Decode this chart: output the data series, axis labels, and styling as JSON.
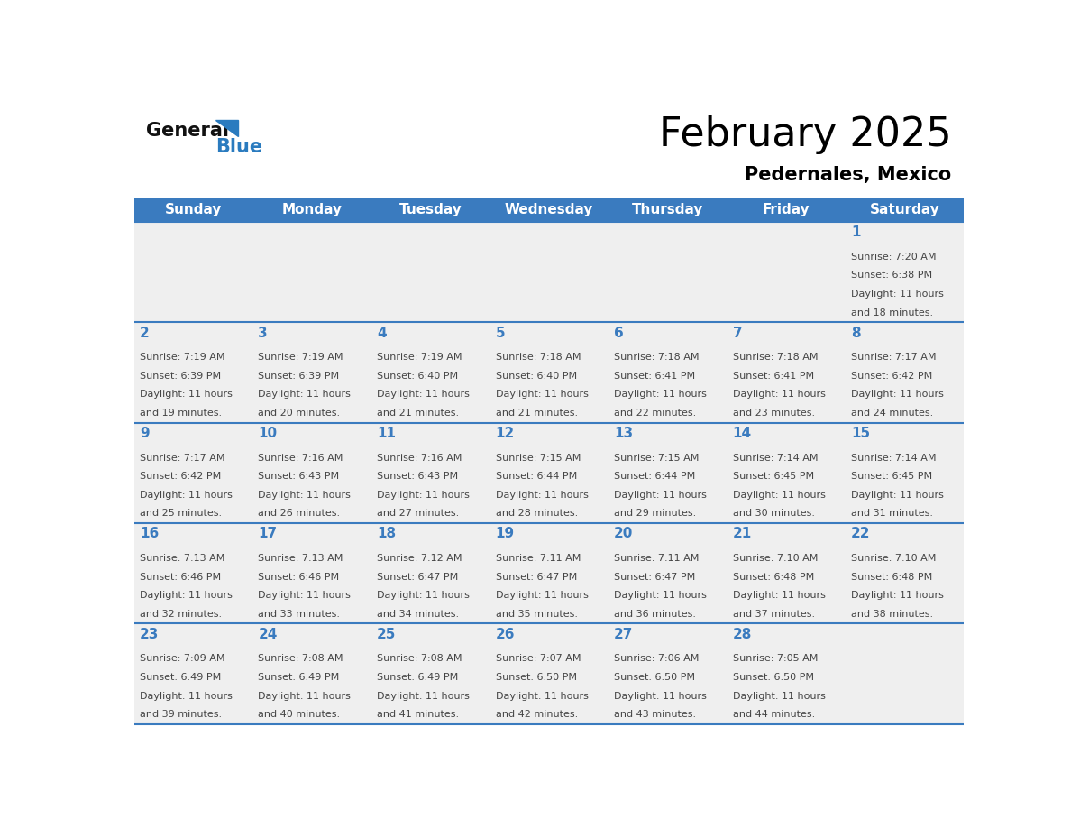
{
  "title": "February 2025",
  "subtitle": "Pedernales, Mexico",
  "header_bg_color": "#3a7bbf",
  "header_text_color": "#ffffff",
  "cell_bg_color_light": "#efefef",
  "day_number_color": "#3a7bbf",
  "text_color": "#444444",
  "line_color": "#3a7bbf",
  "days_of_week": [
    "Sunday",
    "Monday",
    "Tuesday",
    "Wednesday",
    "Thursday",
    "Friday",
    "Saturday"
  ],
  "weeks": [
    [
      null,
      null,
      null,
      null,
      null,
      null,
      1
    ],
    [
      2,
      3,
      4,
      5,
      6,
      7,
      8
    ],
    [
      9,
      10,
      11,
      12,
      13,
      14,
      15
    ],
    [
      16,
      17,
      18,
      19,
      20,
      21,
      22
    ],
    [
      23,
      24,
      25,
      26,
      27,
      28,
      null
    ]
  ],
  "cell_data": {
    "1": {
      "sunrise": "7:20 AM",
      "sunset": "6:38 PM",
      "daylight_hours": 11,
      "daylight_minutes": 18
    },
    "2": {
      "sunrise": "7:19 AM",
      "sunset": "6:39 PM",
      "daylight_hours": 11,
      "daylight_minutes": 19
    },
    "3": {
      "sunrise": "7:19 AM",
      "sunset": "6:39 PM",
      "daylight_hours": 11,
      "daylight_minutes": 20
    },
    "4": {
      "sunrise": "7:19 AM",
      "sunset": "6:40 PM",
      "daylight_hours": 11,
      "daylight_minutes": 21
    },
    "5": {
      "sunrise": "7:18 AM",
      "sunset": "6:40 PM",
      "daylight_hours": 11,
      "daylight_minutes": 21
    },
    "6": {
      "sunrise": "7:18 AM",
      "sunset": "6:41 PM",
      "daylight_hours": 11,
      "daylight_minutes": 22
    },
    "7": {
      "sunrise": "7:18 AM",
      "sunset": "6:41 PM",
      "daylight_hours": 11,
      "daylight_minutes": 23
    },
    "8": {
      "sunrise": "7:17 AM",
      "sunset": "6:42 PM",
      "daylight_hours": 11,
      "daylight_minutes": 24
    },
    "9": {
      "sunrise": "7:17 AM",
      "sunset": "6:42 PM",
      "daylight_hours": 11,
      "daylight_minutes": 25
    },
    "10": {
      "sunrise": "7:16 AM",
      "sunset": "6:43 PM",
      "daylight_hours": 11,
      "daylight_minutes": 26
    },
    "11": {
      "sunrise": "7:16 AM",
      "sunset": "6:43 PM",
      "daylight_hours": 11,
      "daylight_minutes": 27
    },
    "12": {
      "sunrise": "7:15 AM",
      "sunset": "6:44 PM",
      "daylight_hours": 11,
      "daylight_minutes": 28
    },
    "13": {
      "sunrise": "7:15 AM",
      "sunset": "6:44 PM",
      "daylight_hours": 11,
      "daylight_minutes": 29
    },
    "14": {
      "sunrise": "7:14 AM",
      "sunset": "6:45 PM",
      "daylight_hours": 11,
      "daylight_minutes": 30
    },
    "15": {
      "sunrise": "7:14 AM",
      "sunset": "6:45 PM",
      "daylight_hours": 11,
      "daylight_minutes": 31
    },
    "16": {
      "sunrise": "7:13 AM",
      "sunset": "6:46 PM",
      "daylight_hours": 11,
      "daylight_minutes": 32
    },
    "17": {
      "sunrise": "7:13 AM",
      "sunset": "6:46 PM",
      "daylight_hours": 11,
      "daylight_minutes": 33
    },
    "18": {
      "sunrise": "7:12 AM",
      "sunset": "6:47 PM",
      "daylight_hours": 11,
      "daylight_minutes": 34
    },
    "19": {
      "sunrise": "7:11 AM",
      "sunset": "6:47 PM",
      "daylight_hours": 11,
      "daylight_minutes": 35
    },
    "20": {
      "sunrise": "7:11 AM",
      "sunset": "6:47 PM",
      "daylight_hours": 11,
      "daylight_minutes": 36
    },
    "21": {
      "sunrise": "7:10 AM",
      "sunset": "6:48 PM",
      "daylight_hours": 11,
      "daylight_minutes": 37
    },
    "22": {
      "sunrise": "7:10 AM",
      "sunset": "6:48 PM",
      "daylight_hours": 11,
      "daylight_minutes": 38
    },
    "23": {
      "sunrise": "7:09 AM",
      "sunset": "6:49 PM",
      "daylight_hours": 11,
      "daylight_minutes": 39
    },
    "24": {
      "sunrise": "7:08 AM",
      "sunset": "6:49 PM",
      "daylight_hours": 11,
      "daylight_minutes": 40
    },
    "25": {
      "sunrise": "7:08 AM",
      "sunset": "6:49 PM",
      "daylight_hours": 11,
      "daylight_minutes": 41
    },
    "26": {
      "sunrise": "7:07 AM",
      "sunset": "6:50 PM",
      "daylight_hours": 11,
      "daylight_minutes": 42
    },
    "27": {
      "sunrise": "7:06 AM",
      "sunset": "6:50 PM",
      "daylight_hours": 11,
      "daylight_minutes": 43
    },
    "28": {
      "sunrise": "7:05 AM",
      "sunset": "6:50 PM",
      "daylight_hours": 11,
      "daylight_minutes": 44
    }
  },
  "logo_general_color": "#111111",
  "logo_blue_color": "#2a7bbf",
  "logo_triangle_color": "#2a7bbf"
}
